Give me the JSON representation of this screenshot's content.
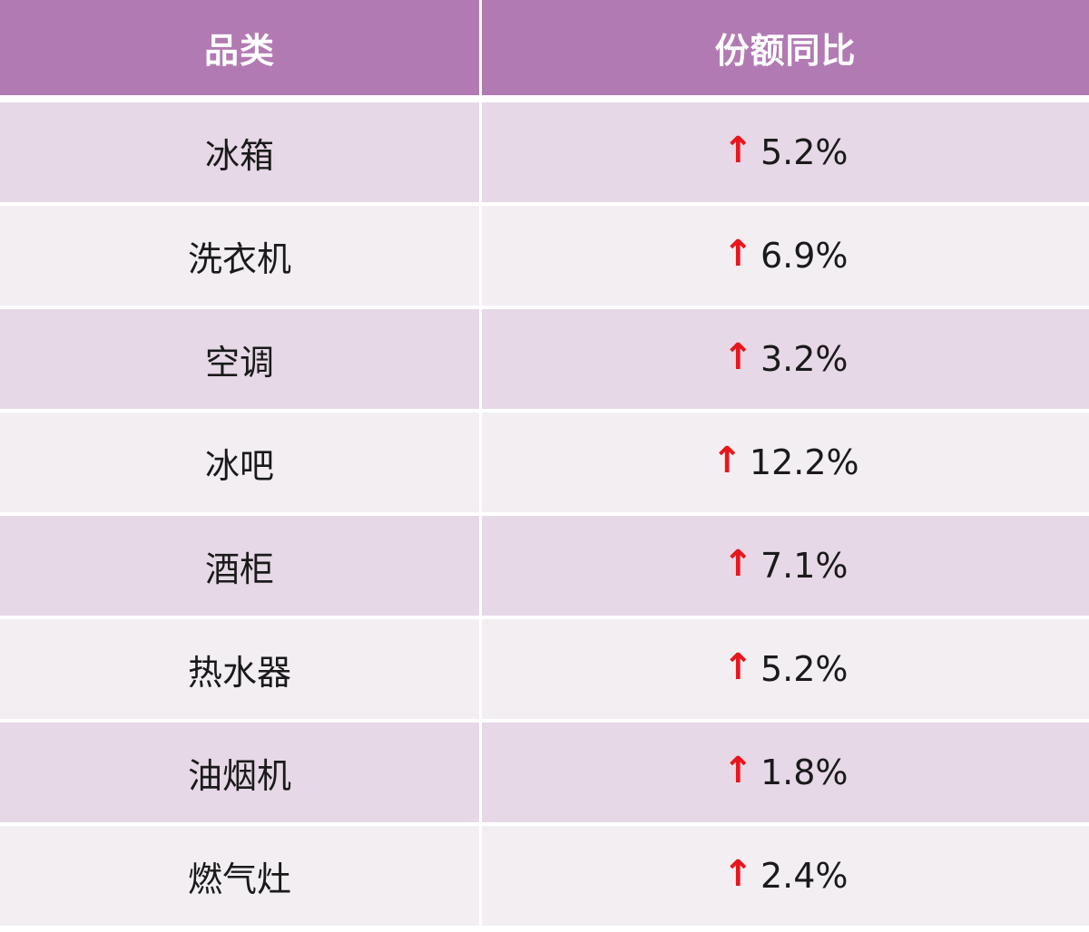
{
  "header": {
    "col1": "品类",
    "col2": "份额同比"
  },
  "arrow_color": "#e8161c",
  "header_color": "#b27ab3",
  "rows": [
    {
      "category": "冰箱",
      "arrow": "↑",
      "value": "5.2%"
    },
    {
      "category": "洗衣机",
      "arrow": "↑",
      "value": "6.9%"
    },
    {
      "category": "空调",
      "arrow": "↑",
      "value": "3.2%"
    },
    {
      "category": "冰吧",
      "arrow": "↑",
      "value": "12.2%"
    },
    {
      "category": "酒柜",
      "arrow": "↑",
      "value": "7.1%"
    },
    {
      "category": "热水器",
      "arrow": "↑",
      "value": "5.2%"
    },
    {
      "category": "油烟机",
      "arrow": "↑",
      "value": "1.8%"
    },
    {
      "category": "燃气灶",
      "arrow": "↑",
      "value": "2.4%"
    }
  ]
}
